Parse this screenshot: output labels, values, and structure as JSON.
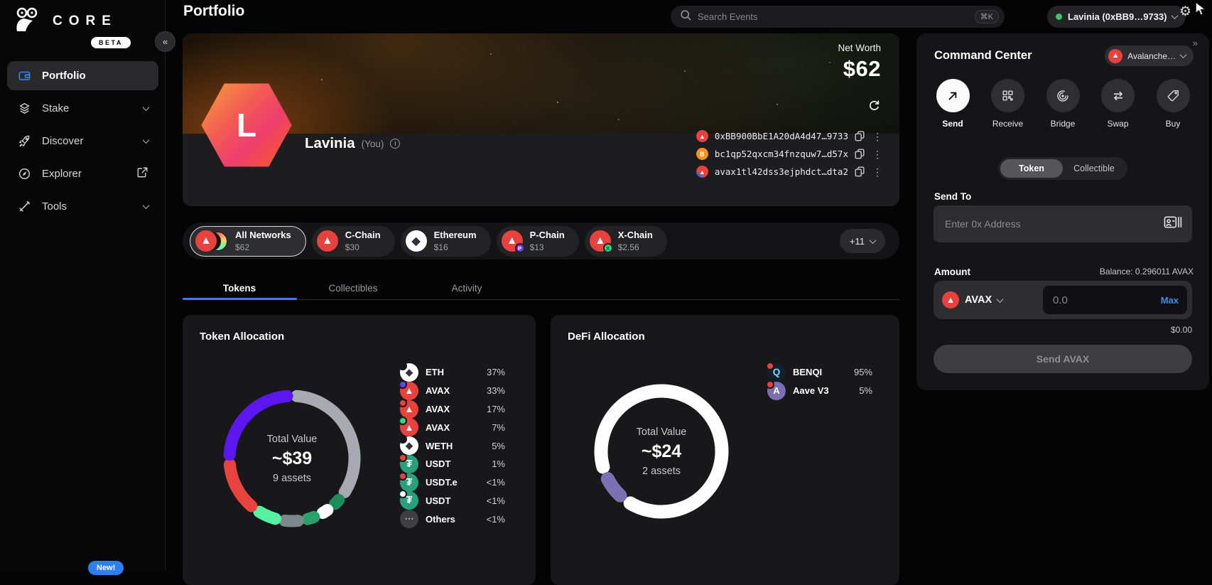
{
  "colors": {
    "accent_blue": "#3E7BFA",
    "avalanche_red": "#E8413E",
    "positive_green": "#3DC66E",
    "tab_underline": "#3E7BFA"
  },
  "sidebar": {
    "logo_text": "CORE",
    "beta_badge": "BETA",
    "collapse_icon": "«",
    "new_badge": "New!",
    "items": [
      {
        "label": "Portfolio",
        "icon": "wallet-icon",
        "active": true,
        "trailing": "none"
      },
      {
        "label": "Stake",
        "icon": "layers-icon",
        "active": false,
        "trailing": "chevron"
      },
      {
        "label": "Discover",
        "icon": "rocket-icon",
        "active": false,
        "trailing": "chevron"
      },
      {
        "label": "Explorer",
        "icon": "compass-icon",
        "active": false,
        "trailing": "external"
      },
      {
        "label": "Tools",
        "icon": "tools-icon",
        "active": false,
        "trailing": "chevron"
      }
    ]
  },
  "topbar": {
    "title": "Portfolio",
    "search_placeholder": "Search Events",
    "search_shortcut": "⌘K",
    "account_label": "Lavinia (0xBB9…9733)"
  },
  "hero": {
    "net_worth_label": "Net Worth",
    "net_worth_value": "$62",
    "avatar_letter": "L",
    "name": "Lavinia",
    "name_suffix": "(You)",
    "addresses": [
      {
        "network": "avalanche-c",
        "text": "0xBB900BbE1A20dA4d47…9733"
      },
      {
        "network": "bitcoin",
        "text": "bc1qp52qxcm34fnzquw7…d57x"
      },
      {
        "network": "avalanche-xp",
        "text": "avax1tl42dss3ejphdct…dta2"
      }
    ]
  },
  "networks": {
    "chips": [
      {
        "label": "All Networks",
        "value": "$62",
        "icon": "all-networks",
        "selected": true
      },
      {
        "label": "C-Chain",
        "value": "$30",
        "icon": "avalanche",
        "selected": false
      },
      {
        "label": "Ethereum",
        "value": "$16",
        "icon": "ethereum",
        "selected": false
      },
      {
        "label": "P-Chain",
        "value": "$13",
        "icon": "avalanche-p",
        "selected": false
      },
      {
        "label": "X-Chain",
        "value": "$2.56",
        "icon": "avalanche-x",
        "selected": false
      }
    ],
    "more_label": "+11"
  },
  "tabs": [
    {
      "label": "Tokens",
      "active": true
    },
    {
      "label": "Collectibles",
      "active": false
    },
    {
      "label": "Activity",
      "active": false
    }
  ],
  "chart_data": [
    {
      "type": "pie",
      "title": "Token Allocation",
      "center": {
        "label": "Total Value",
        "value": "~$39",
        "sub": "9 assets"
      },
      "legend": [
        {
          "name": "ETH",
          "pct": "37%",
          "color": "#A9A9B2",
          "icon": "eth",
          "badge": "dark"
        },
        {
          "name": "AVAX",
          "pct": "33%",
          "color": "#5B16F2",
          "icon": "avax",
          "badge": "purple"
        },
        {
          "name": "AVAX",
          "pct": "17%",
          "color": "#E8433F",
          "icon": "avax",
          "badge": "red"
        },
        {
          "name": "AVAX",
          "pct": "7%",
          "color": "#55F1A2",
          "icon": "avax",
          "badge": "green"
        },
        {
          "name": "WETH",
          "pct": "5%",
          "color": "#7C898C",
          "icon": "eth",
          "badge": "dark"
        },
        {
          "name": "USDT",
          "pct": "1%",
          "color": "#2AA06B",
          "icon": "usdt",
          "badge": "red"
        },
        {
          "name": "USDT.e",
          "pct": "<1%",
          "color": "#FFFFFF",
          "icon": "usdt",
          "badge": "red"
        },
        {
          "name": "USDT",
          "pct": "<1%",
          "color": "#1F8A5B",
          "icon": "usdt",
          "badge": "white"
        },
        {
          "name": "Others",
          "pct": "<1%",
          "color": "#6B7280",
          "icon": "others",
          "badge": "none"
        }
      ],
      "segments": [
        {
          "label": "ETH",
          "deg": 118,
          "color": "#A9A9B2"
        },
        {
          "label": "USDT",
          "deg": 5,
          "color": "#1F8A5B"
        },
        {
          "label": "USDT.e",
          "deg": 5,
          "color": "#FFFFFF"
        },
        {
          "label": "USDT",
          "deg": 6,
          "color": "#2AA06B"
        },
        {
          "label": "WETH",
          "deg": 12,
          "color": "#7C898C"
        },
        {
          "label": "AVAX",
          "deg": 16,
          "color": "#55F1A2"
        },
        {
          "label": "AVAX",
          "deg": 44,
          "color": "#E8433F"
        },
        {
          "label": "AVAX",
          "deg": 82,
          "color": "#5B16F2"
        }
      ],
      "gap_deg": 9,
      "start_deg": -90
    },
    {
      "type": "pie",
      "title": "DeFi Allocation",
      "center": {
        "label": "Total Value",
        "value": "~$24",
        "sub": "2 assets"
      },
      "legend": [
        {
          "name": "BENQI",
          "pct": "95%",
          "color": "#FFFFFF",
          "icon": "benqi",
          "badge": "red"
        },
        {
          "name": "Aave V3",
          "pct": "5%",
          "color": "#7A70B2",
          "icon": "aave",
          "badge": "red"
        }
      ],
      "segments": [
        {
          "label": "BENQI",
          "deg": 316,
          "color": "#FFFFFF"
        },
        {
          "label": "Aave V3",
          "deg": 20,
          "color": "#7A70B2"
        }
      ],
      "gap_deg": 12,
      "start_deg": 159
    }
  ],
  "command_center": {
    "collapse_icon": "»",
    "title": "Command Center",
    "network_selector_label": "Avalanche…",
    "actions": [
      {
        "label": "Send",
        "icon": "send-arrow-icon",
        "active": true
      },
      {
        "label": "Receive",
        "icon": "qr-code-icon",
        "active": false
      },
      {
        "label": "Bridge",
        "icon": "bridge-icon",
        "active": false
      },
      {
        "label": "Swap",
        "icon": "swap-arrows-icon",
        "active": false
      },
      {
        "label": "Buy",
        "icon": "price-tag-icon",
        "active": false
      }
    ],
    "toggle": [
      {
        "label": "Token",
        "active": true
      },
      {
        "label": "Collectible",
        "active": false
      }
    ],
    "send_to_label": "Send To",
    "address_placeholder": "Enter 0x Address",
    "amount_label": "Amount",
    "balance_label": "Balance: 0.296011 AVAX",
    "token_selector_label": "AVAX",
    "amount_placeholder": "0.0",
    "max_label": "Max",
    "fiat_value": "$0.00",
    "submit_label": "Send AVAX"
  }
}
